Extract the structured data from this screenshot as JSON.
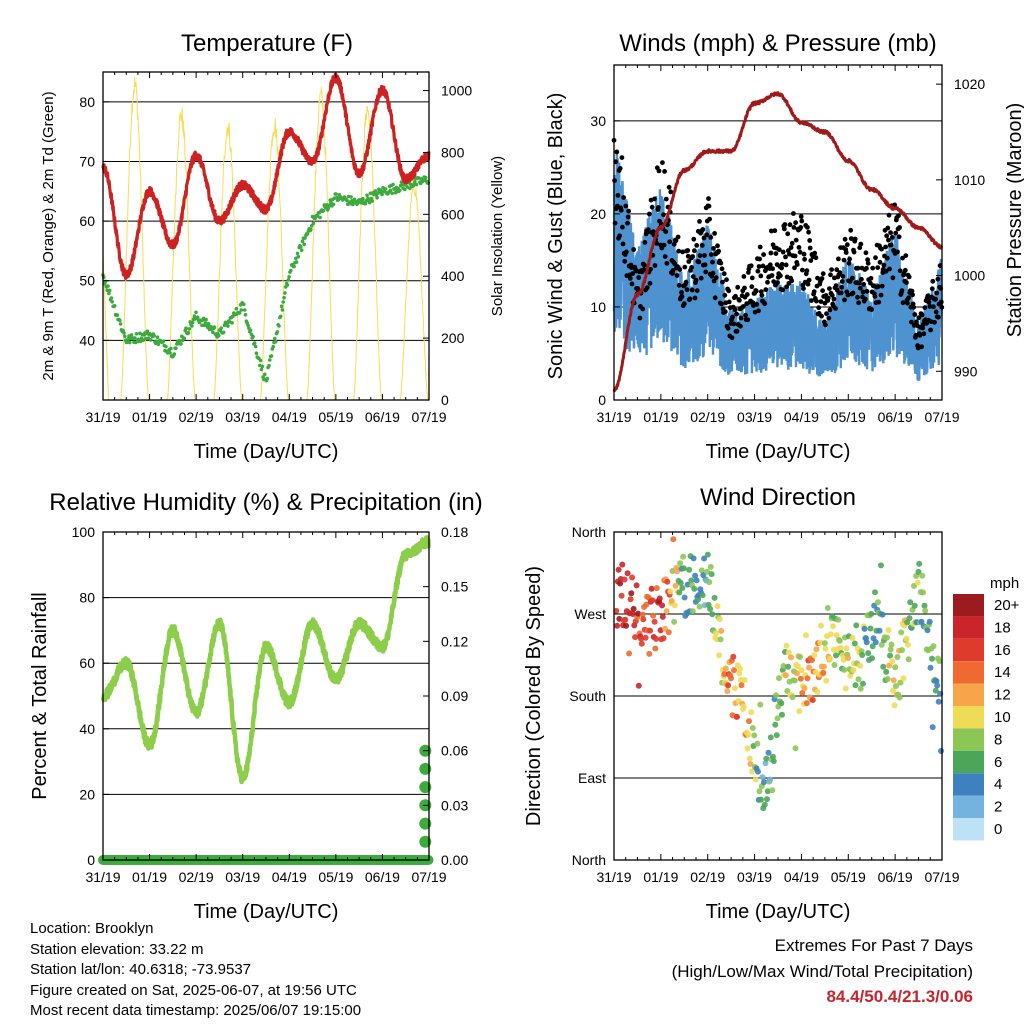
{
  "colors": {
    "temp": "#cc2222",
    "dewpoint": "#3daa3d",
    "solar": "#f7dc50",
    "wind": "#4e93cf",
    "gust": "#000000",
    "pressure": "#a01a1a",
    "rh": "#8ccd4a",
    "rain": "#3caa3c"
  },
  "charts": [
    {
      "id": "temperature",
      "type": "line",
      "title": "Temperature (F)",
      "xlabel": "Time (Day/UTC)",
      "ylabel_left": "2m & 9m T (Red, Orange) & 2m Td (Green)",
      "ylabel_right": "Solar Insolation (Yellow)",
      "x_ticks": [
        "31/19",
        "01/19",
        "02/19",
        "03/19",
        "04/19",
        "05/19",
        "06/19",
        "07/19"
      ],
      "y_left_ticks": [
        "40",
        "50",
        "60",
        "70",
        "80"
      ],
      "y_right_ticks": [
        "0",
        "200",
        "400",
        "600",
        "800",
        "1000"
      ]
    },
    {
      "id": "winds",
      "type": "scatter",
      "title": "Winds (mph) & Pressure (mb)",
      "xlabel": "Time (Day/UTC)",
      "ylabel_left": "Sonic Wind & Gust (Blue, Black)",
      "ylabel_right": "Station Pressure (Maroon)",
      "x_ticks": [
        "31/19",
        "01/19",
        "02/19",
        "03/19",
        "04/19",
        "05/19",
        "06/19",
        "07/19"
      ],
      "y_left_ticks": [
        "0",
        "10",
        "20",
        "30"
      ],
      "y_right_ticks": [
        "990",
        "1000",
        "1010",
        "1020"
      ]
    },
    {
      "id": "humidity",
      "type": "line",
      "title": "Relative Humidity (%) & Precipitation (in)",
      "xlabel": "Time (Day/UTC)",
      "ylabel_left": "Percent & Total Rainfall",
      "x_ticks": [
        "31/19",
        "01/19",
        "02/19",
        "03/19",
        "04/19",
        "05/19",
        "06/19",
        "07/19"
      ],
      "y_left_ticks": [
        "0",
        "20",
        "40",
        "60",
        "80",
        "100"
      ],
      "y_right_ticks": [
        "0.00",
        "0.03",
        "0.06",
        "0.09",
        "0.12",
        "0.15",
        "0.18"
      ]
    },
    {
      "id": "direction",
      "type": "scatter",
      "title": "Wind Direction",
      "xlabel": "Time (Day/UTC)",
      "ylabel_left": "Direction (Colored By Speed)",
      "x_ticks": [
        "31/19",
        "01/19",
        "02/19",
        "03/19",
        "04/19",
        "05/19",
        "06/19",
        "07/19"
      ],
      "y_left_ticks": [
        "North",
        "East",
        "South",
        "West",
        "North"
      ],
      "legend_title": "mph",
      "legend_labels": [
        "20+",
        "18",
        "16",
        "14",
        "12",
        "10",
        "8",
        "6",
        "4",
        "2",
        "0"
      ],
      "legend_colors": [
        "#9b1b1e",
        "#c9252a",
        "#de3b2c",
        "#ee6a30",
        "#f7a548",
        "#eedc56",
        "#8cc755",
        "#4ca65a",
        "#3d82bf",
        "#74b2e0",
        "#bde2f5"
      ]
    }
  ],
  "chart_data": [
    {
      "type": "line",
      "title": "Temperature (F)",
      "x": [
        0,
        0.5,
        1,
        1.5,
        2,
        2.5,
        3,
        3.5,
        4,
        4.5,
        5,
        5.5,
        6,
        6.5,
        7
      ],
      "series": [
        {
          "name": "2m T",
          "values": [
            69,
            51,
            65,
            56,
            71,
            60,
            66,
            62,
            75,
            70,
            84,
            68,
            82,
            67,
            71
          ]
        },
        {
          "name": "2m Td",
          "values": [
            51,
            40,
            41,
            38,
            44,
            41,
            46,
            33,
            51,
            60,
            64,
            63,
            65,
            66,
            67
          ]
        },
        {
          "name": "Solar Insolation",
          "values": [
            820,
            0,
            1010,
            0,
            960,
            0,
            920,
            0,
            930,
            0,
            940,
            0,
            980,
            0,
            720
          ]
        }
      ],
      "xlim": [
        0,
        7
      ],
      "ylim": [
        30,
        85
      ],
      "ylim_right": [
        0,
        1060
      ]
    },
    {
      "type": "scatter",
      "title": "Winds (mph) & Pressure (mb)",
      "x": [
        0,
        0.5,
        1,
        1.5,
        2,
        2.5,
        3,
        3.5,
        4,
        4.5,
        5,
        5.5,
        6,
        6.5,
        7
      ],
      "series": [
        {
          "name": "Sonic Wind",
          "values": [
            18,
            10,
            15,
            8,
            12,
            6,
            7,
            8,
            8,
            5,
            10,
            7,
            12,
            5,
            10
          ]
        },
        {
          "name": "Gust",
          "values": [
            30,
            12,
            25,
            14,
            20,
            10,
            14,
            18,
            19,
            12,
            17,
            14,
            20,
            8,
            14
          ]
        },
        {
          "name": "Station Pressure",
          "values": [
            988,
            998,
            1005,
            1011,
            1013,
            1013,
            1018,
            1019,
            1016,
            1015,
            1012,
            1009,
            1007,
            1005,
            1003
          ]
        }
      ],
      "xlim": [
        0,
        7
      ],
      "ylim": [
        0,
        36
      ],
      "ylim_right": [
        987,
        1022
      ]
    },
    {
      "type": "line",
      "title": "Relative Humidity (%) & Precipitation (in)",
      "x": [
        0,
        0.5,
        1,
        1.5,
        2,
        2.5,
        3,
        3.5,
        4,
        4.5,
        5,
        5.5,
        6,
        6.5,
        7
      ],
      "series": [
        {
          "name": "Relative Humidity",
          "values": [
            50,
            60,
            35,
            70,
            45,
            72,
            25,
            65,
            48,
            72,
            55,
            72,
            65,
            93,
            97
          ]
        },
        {
          "name": "Total Precipitation",
          "values": [
            0,
            0,
            0,
            0,
            0,
            0,
            0,
            0,
            0,
            0,
            0,
            0,
            0,
            0.01,
            0.06
          ]
        }
      ],
      "xlim": [
        0,
        7
      ],
      "ylim": [
        0,
        100
      ],
      "ylim_right": [
        0,
        0.18
      ]
    },
    {
      "type": "scatter",
      "title": "Wind Direction",
      "x": [
        0.2,
        0.6,
        1.0,
        1.5,
        2.0,
        2.4,
        2.8,
        3.2,
        3.6,
        4.2,
        4.7,
        5.2,
        5.6,
        6.0,
        6.5,
        6.9
      ],
      "series": [
        {
          "name": "Direction (deg)",
          "values": [
            290,
            270,
            275,
            300,
            315,
            200,
            170,
            60,
            210,
            190,
            240,
            200,
            270,
            190,
            300,
            190
          ]
        },
        {
          "name": "Speed (mph)",
          "values": [
            18,
            16,
            17,
            6,
            5,
            13,
            12,
            4,
            8,
            13,
            9,
            8,
            5,
            10,
            6,
            6
          ]
        }
      ],
      "xlim": [
        0,
        7
      ],
      "ylim": [
        0,
        360
      ]
    }
  ],
  "info": {
    "location": "Location: Brooklyn",
    "elevation": "Station elevation: 33.22 m",
    "latlon": "Station lat/lon: 40.6318; -73.9537",
    "created": "Figure created on Sat, 2025-06-07, at 19:56 UTC",
    "timestamp": "Most recent data timestamp: 2025/06/07 19:15:00"
  },
  "extremes": {
    "title": "Extremes For Past 7 Days",
    "subtitle": "(High/Low/Max Wind/Total Precipitation)",
    "values": "84.4/50.4/21.3/0.06"
  }
}
